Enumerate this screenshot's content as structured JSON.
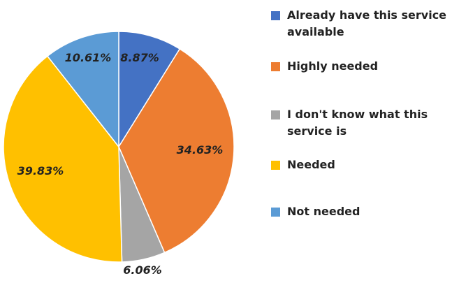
{
  "chart_data": {
    "type": "pie",
    "title": "",
    "slices": [
      {
        "name": "Already have this service available",
        "value": 8.87,
        "label": "8.87%",
        "color": "#4472C4"
      },
      {
        "name": "Highly needed",
        "value": 34.63,
        "label": "34.63%",
        "color": "#ED7D31"
      },
      {
        "name": "I don't know what this service is",
        "value": 6.06,
        "label": "6.06%",
        "color": "#A5A5A5"
      },
      {
        "name": "Needed",
        "value": 39.83,
        "label": "39.83%",
        "color": "#FFC000"
      },
      {
        "name": "Not needed",
        "value": 10.61,
        "label": "10.61%",
        "color": "#5B9BD5"
      }
    ],
    "start_angle_deg": 0,
    "direction": "clockwise",
    "legend_position": "right"
  },
  "legend": {
    "items": [
      {
        "label": "Already have this service available",
        "color": "#4472C4"
      },
      {
        "label": "Highly needed",
        "color": "#ED7D31"
      },
      {
        "label": "I don't know what this service is",
        "color": "#A5A5A5"
      },
      {
        "label": "Needed",
        "color": "#FFC000"
      },
      {
        "label": "Not needed",
        "color": "#5B9BD5"
      }
    ]
  }
}
